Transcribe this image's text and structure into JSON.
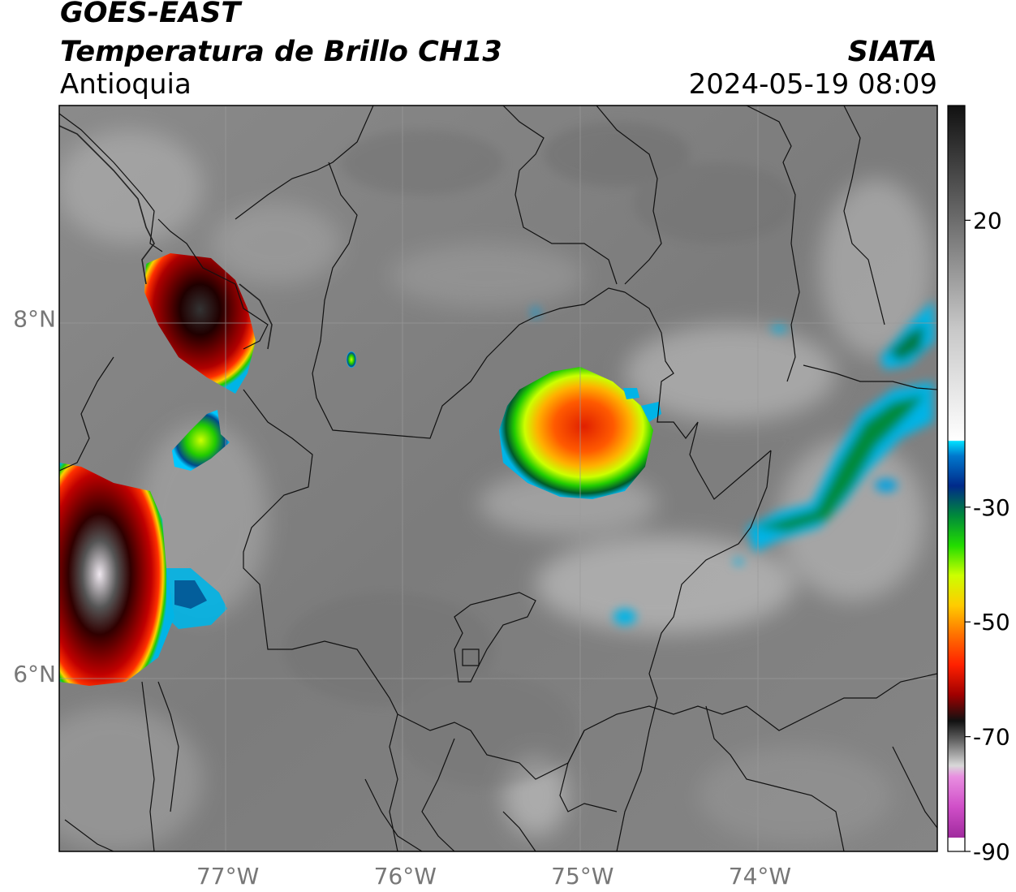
{
  "header": {
    "satellite": "GOES-EAST",
    "product": "Temperatura de Brillo CH13",
    "region": "Antioquia",
    "org": "SIATA",
    "datetime": "2024-05-19 08:09"
  },
  "axes": {
    "lon_ticks": [
      "77°W",
      "76°W",
      "75°W",
      "74°W"
    ],
    "lat_ticks": [
      "8°N",
      "6°N"
    ],
    "lon_values": [
      -77,
      -76,
      -75,
      -74
    ],
    "lat_values": [
      8,
      6
    ],
    "lon_range": [
      -77.95,
      -73.0
    ],
    "lat_range": [
      5.0,
      9.2
    ]
  },
  "colorbar": {
    "tick_labels": [
      "20",
      "-30",
      "-50",
      "-70",
      "-90"
    ],
    "tick_values": [
      20,
      -30,
      -50,
      -70,
      -90
    ],
    "range": [
      -90,
      40
    ]
  },
  "colors": {
    "background_gray": "#808080",
    "cold_red": "#c00000",
    "green": "#22cc00",
    "cyan": "#00c8ff"
  }
}
